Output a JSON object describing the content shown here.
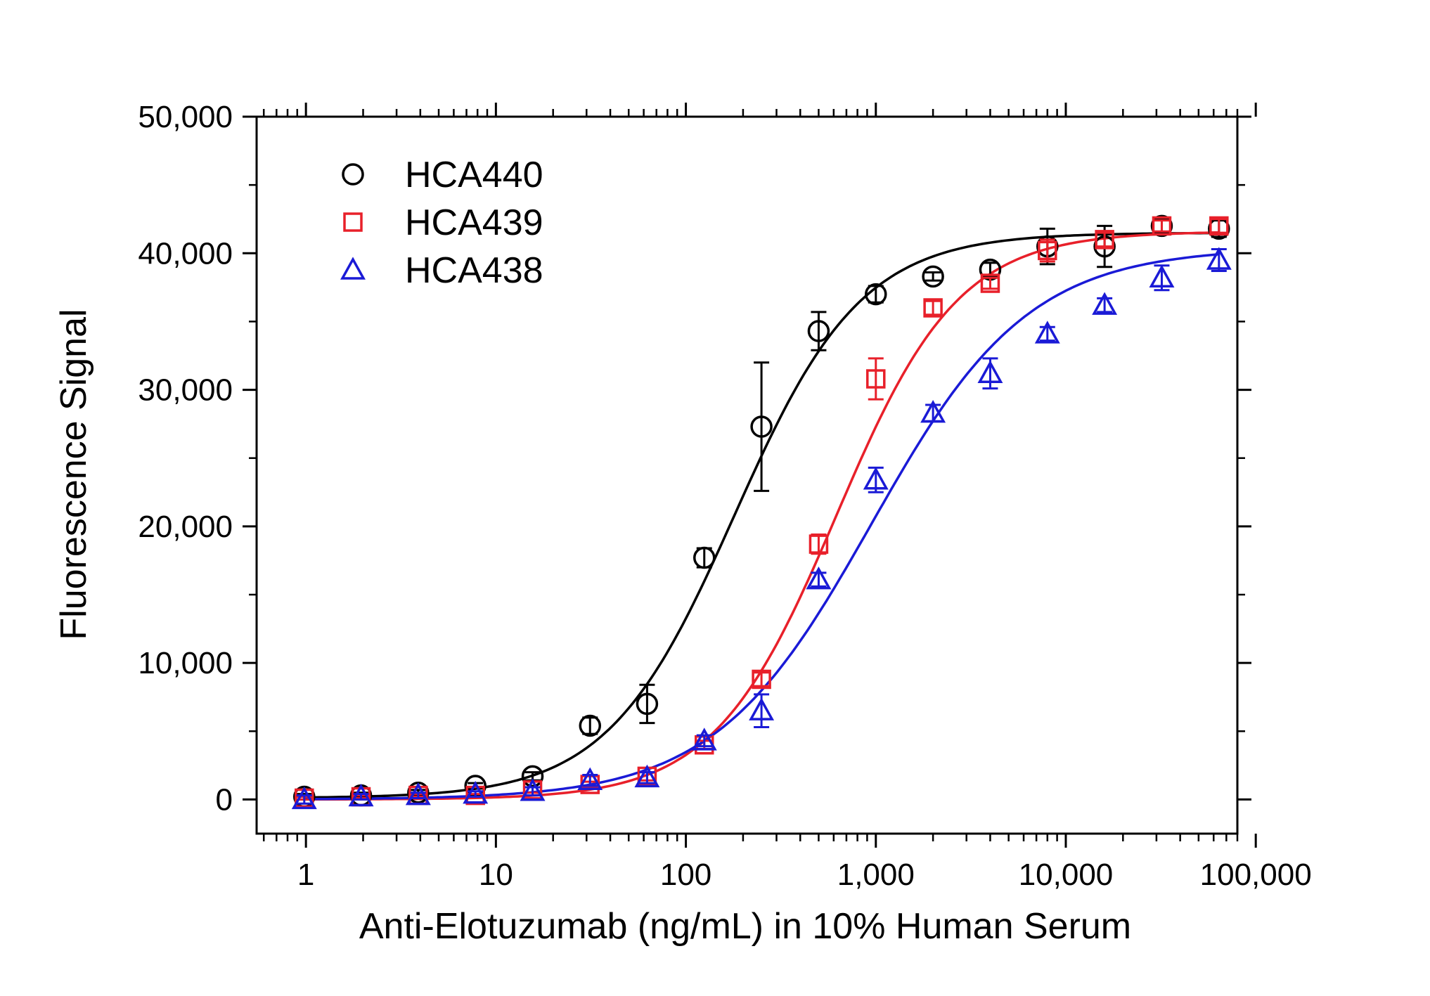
{
  "chart_data": {
    "type": "scatter",
    "xlabel": "Anti-Elotuzumab (ng/mL) in 10% Human Serum",
    "ylabel": "Fluorescence Signal",
    "xscale": "log",
    "xlim": [
      0.55,
      80000
    ],
    "ylim": [
      -2500,
      50000
    ],
    "x_ticks": [
      1,
      10,
      100,
      1000,
      10000,
      100000
    ],
    "x_tick_labels": [
      "1",
      "10",
      "100",
      "1,000",
      "10,000",
      "100,000"
    ],
    "y_ticks": [
      0,
      10000,
      20000,
      30000,
      40000,
      50000
    ],
    "y_tick_labels": [
      "0",
      "10,000",
      "20,000",
      "30,000",
      "40,000",
      "50,000"
    ],
    "grid": false,
    "legend_position": "top-left",
    "x": [
      0.98,
      1.95,
      3.9,
      7.8,
      15.6,
      31.3,
      62.5,
      125,
      250,
      500,
      1000,
      2000,
      4000,
      8000,
      16000,
      32000,
      64000
    ],
    "series": [
      {
        "name": "HCA440",
        "marker": "circle",
        "color": "#000000",
        "values": [
          200,
          300,
          500,
          1000,
          1700,
          5400,
          7000,
          17700,
          27300,
          34300,
          37000,
          38300,
          38800,
          40500,
          40500,
          42000,
          41800
        ],
        "errors": [
          200,
          200,
          200,
          200,
          300,
          600,
          1400,
          700,
          4700,
          1400,
          600,
          300,
          500,
          1300,
          1500,
          500,
          600
        ],
        "fit": {
          "bottom": 100,
          "top": 41500,
          "ec50": 180,
          "hill": 1.3
        }
      },
      {
        "name": "HCA439",
        "marker": "square",
        "color": "#e8202a",
        "values": [
          100,
          200,
          300,
          300,
          700,
          1100,
          1700,
          4000,
          8800,
          18700,
          30800,
          36000,
          37800,
          40200,
          41000,
          42000,
          42000
        ],
        "errors": [
          100,
          100,
          100,
          100,
          200,
          200,
          300,
          300,
          500,
          700,
          1500,
          500,
          400,
          800,
          500,
          400,
          500
        ],
        "fit": {
          "bottom": 0,
          "top": 41600,
          "ec50": 620,
          "hill": 1.35
        }
      },
      {
        "name": "HCA438",
        "marker": "triangle",
        "color": "#1a1ad6",
        "values": [
          0,
          200,
          300,
          400,
          600,
          1400,
          1600,
          4300,
          6500,
          16100,
          23400,
          28300,
          31200,
          34100,
          36200,
          38200,
          39500
        ],
        "errors": [
          300,
          200,
          200,
          200,
          300,
          400,
          400,
          400,
          1200,
          500,
          900,
          600,
          1100,
          500,
          500,
          900,
          800
        ],
        "fit": {
          "bottom": 0,
          "top": 40400,
          "ec50": 950,
          "hill": 1.05
        }
      }
    ]
  }
}
